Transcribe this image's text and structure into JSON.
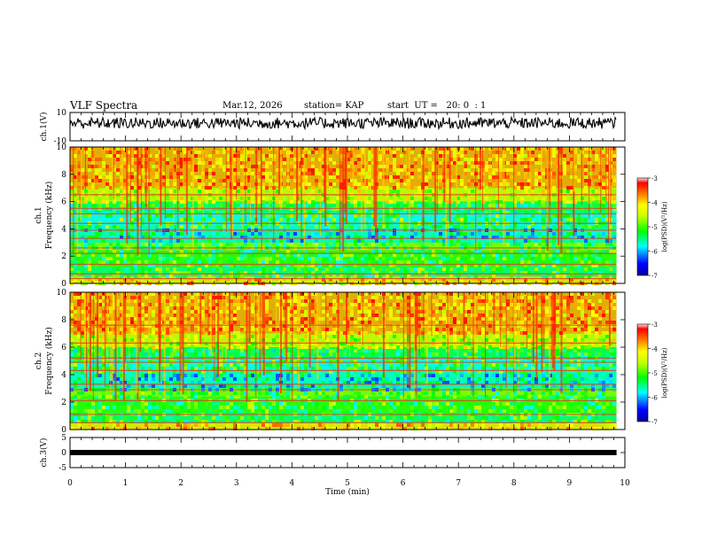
{
  "header": {
    "title": "VLF Spectra",
    "date": "Mar.12, 2026",
    "station": "station= KAP",
    "start": "start  UT =   20: 0  : 1"
  },
  "chart_data": [
    {
      "type": "line",
      "name": "waveform",
      "ylabel": "ch.1(V)",
      "ylim": [
        -10,
        10
      ],
      "y_ticks": [
        "10",
        "-10"
      ],
      "x_range_min": [
        0,
        9.85
      ],
      "description_values": {
        "baseline_v": 2.5,
        "typical_amplitude_v": 4
      }
    },
    {
      "type": "heatmap",
      "name": "ch.1 spectrogram",
      "ylabel_line1": "ch.1",
      "ylabel_line2": "Frequency (kHz)",
      "ylim_khz": [
        0,
        10
      ],
      "y_ticks": [
        "0",
        "2",
        "4",
        "6",
        "8",
        "10"
      ],
      "x_range_min": [
        0,
        9.85
      ],
      "horizontal_lines_khz": [
        0.35,
        0.7,
        1.4,
        2.2,
        2.6,
        3.3,
        3.9,
        4.4,
        5.1,
        5.5,
        6.5
      ],
      "colorbar": {
        "label": "log(PSD)(V²/Hz)",
        "range": [
          -7,
          -3
        ],
        "ticks": [
          "-3",
          "-4",
          "-5",
          "-6",
          "-7"
        ]
      }
    },
    {
      "type": "heatmap",
      "name": "ch.2 spectrogram",
      "ylabel_line1": "ch.2",
      "ylabel_line2": "Frequency (kHz)",
      "ylim_khz": [
        0,
        10
      ],
      "y_ticks": [
        "0",
        "2",
        "4",
        "6",
        "8",
        "10"
      ],
      "x_range_min": [
        0,
        9.85
      ],
      "horizontal_lines_khz": [
        0.5,
        1.1,
        2.1,
        2.9,
        3.3,
        4.3,
        4.9,
        5.2,
        6.3,
        7.6
      ],
      "colorbar": {
        "label": "log(PSD)(V²/Hz)",
        "range": [
          -7,
          -3
        ],
        "ticks": [
          "-3",
          "-4",
          "-5",
          "-6",
          "-7"
        ]
      }
    },
    {
      "type": "line",
      "name": "ch.3",
      "ylabel": "ch.3(V)",
      "ylim": [
        -5,
        5
      ],
      "y_ticks": [
        "5",
        "0",
        "-5"
      ],
      "x_range_min": [
        0,
        9.85
      ],
      "level_v": 0
    }
  ],
  "x_axis": {
    "label": "Time (min)",
    "range": [
      0,
      10
    ],
    "ticks": [
      "0",
      "1",
      "2",
      "3",
      "4",
      "5",
      "6",
      "7",
      "8",
      "9",
      "10"
    ]
  }
}
